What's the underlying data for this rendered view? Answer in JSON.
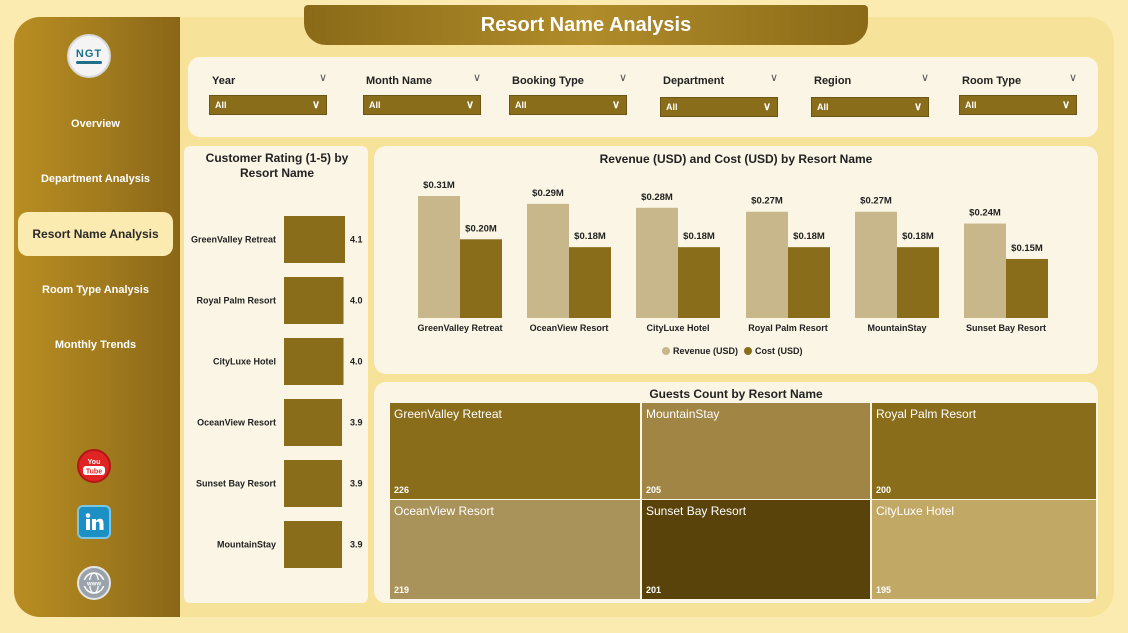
{
  "title": "Resort Name Analysis",
  "logo": {
    "text": "NGT",
    "subtext": ""
  },
  "nav": [
    {
      "label": "Overview",
      "active": false
    },
    {
      "label": "Department Analysis",
      "active": false
    },
    {
      "label": "Resort Name Analysis",
      "active": true
    },
    {
      "label": "Room Type Analysis",
      "active": false
    },
    {
      "label": "Monthly Trends",
      "active": false
    }
  ],
  "social": [
    {
      "icon": "youtube-icon",
      "label": "You Tube"
    },
    {
      "icon": "linkedin-icon",
      "label": "in"
    },
    {
      "icon": "globe-icon",
      "label": "www"
    }
  ],
  "filters": [
    {
      "label": "Year",
      "value": "All"
    },
    {
      "label": "Month Name",
      "value": "All"
    },
    {
      "label": "Booking Type",
      "value": "All"
    },
    {
      "label": "Department",
      "value": "All"
    },
    {
      "label": "Region",
      "value": "All"
    },
    {
      "label": "Room Type",
      "value": "All"
    }
  ],
  "colors": {
    "accent_dark": "#8a6d1b",
    "revenue": "#c7b78a",
    "cost": "#8a6d1b"
  },
  "chart_data": [
    {
      "type": "bar",
      "orientation": "horizontal",
      "title": "Customer Rating (1-5) by Resort Name",
      "categories": [
        "GreenValley Retreat",
        "Royal Palm Resort",
        "CityLuxe Hotel",
        "OceanView Resort",
        "Sunset Bay Resort",
        "MountainStay"
      ],
      "values": [
        4.1,
        4.0,
        4.0,
        3.9,
        3.9,
        3.9
      ],
      "value_labels": [
        "4.1",
        "4.0",
        "4.0",
        "3.9",
        "3.9",
        "3.9"
      ]
    },
    {
      "type": "bar",
      "title": "Revenue (USD) and Cost (USD) by Resort Name",
      "categories": [
        "GreenValley Retreat",
        "OceanView Resort",
        "CityLuxe Hotel",
        "Royal Palm Resort",
        "MountainStay",
        "Sunset Bay Resort"
      ],
      "series": [
        {
          "name": "Revenue (USD)",
          "values": [
            0.31,
            0.29,
            0.28,
            0.27,
            0.27,
            0.24
          ],
          "labels": [
            "$0.31M",
            "$0.29M",
            "$0.28M",
            "$0.27M",
            "$0.27M",
            "$0.24M"
          ]
        },
        {
          "name": "Cost (USD)",
          "values": [
            0.2,
            0.18,
            0.18,
            0.18,
            0.18,
            0.15
          ],
          "labels": [
            "$0.20M",
            "$0.18M",
            "$0.18M",
            "$0.18M",
            "$0.18M",
            "$0.15M"
          ]
        }
      ],
      "legend": "bottom"
    },
    {
      "type": "treemap",
      "title": "Guests Count by Resort Name",
      "items": [
        {
          "name": "GreenValley Retreat",
          "value": 226,
          "color": "#8a6d1b"
        },
        {
          "name": "MountainStay",
          "value": 205,
          "color": "#a08545"
        },
        {
          "name": "Royal Palm Resort",
          "value": 200,
          "color": "#8a6d1b"
        },
        {
          "name": "OceanView Resort",
          "value": 219,
          "color": "#a9935a"
        },
        {
          "name": "Sunset Bay Resort",
          "value": 201,
          "color": "#5a430b"
        },
        {
          "name": "CityLuxe Hotel",
          "value": 195,
          "color": "#c1a865"
        }
      ]
    }
  ]
}
